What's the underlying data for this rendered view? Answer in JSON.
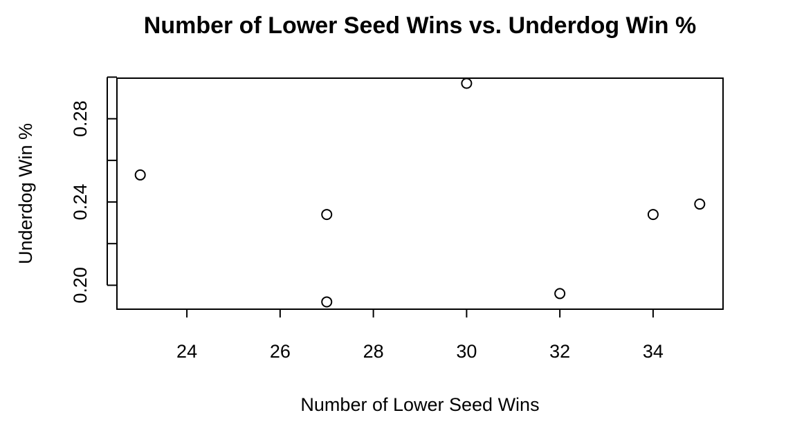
{
  "chart_data": {
    "type": "scatter",
    "title": "Number of Lower Seed Wins vs. Underdog Win %",
    "xlabel": "Number of Lower Seed Wins",
    "ylabel": "Underdog Win %",
    "xlim": [
      22.5,
      35.5
    ],
    "ylim": [
      0.1885,
      0.2995
    ],
    "x_ticks": [
      24,
      26,
      28,
      30,
      32,
      34
    ],
    "x_tick_labels": [
      "24",
      "26",
      "28",
      "30",
      "32",
      "34"
    ],
    "y_ticks": [
      0.2,
      0.22,
      0.24,
      0.26,
      0.28,
      0.3
    ],
    "y_tick_labels": [
      "0.20",
      "",
      "0.24",
      "",
      "0.28",
      ""
    ],
    "grid": false,
    "legend": "none",
    "points": [
      {
        "x": 23,
        "y": 0.253
      },
      {
        "x": 27,
        "y": 0.234
      },
      {
        "x": 27,
        "y": 0.192
      },
      {
        "x": 30,
        "y": 0.297
      },
      {
        "x": 32,
        "y": 0.196
      },
      {
        "x": 34,
        "y": 0.234
      },
      {
        "x": 35,
        "y": 0.239
      }
    ]
  }
}
